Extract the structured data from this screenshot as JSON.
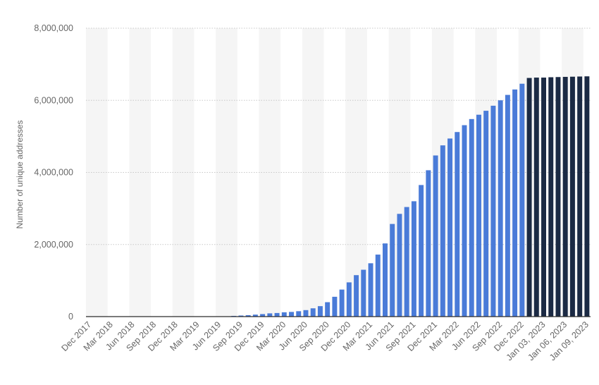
{
  "chart_data": {
    "type": "bar",
    "title": "",
    "xlabel": "",
    "ylabel": "Number of unique addresses",
    "ylim": [
      0,
      8000000
    ],
    "yticks": [
      0,
      2000000,
      4000000,
      6000000,
      8000000
    ],
    "ytick_labels": [
      "0",
      "2,000,000",
      "4,000,000",
      "6,000,000",
      "8,000,000"
    ],
    "grid": true,
    "legend": "none",
    "colors": {
      "monthly": "#4a7bd8",
      "daily": "#1b2a44",
      "text": "#666666"
    },
    "categories": [
      "Dec 2017",
      "Jan 2018",
      "Feb 2018",
      "Mar 2018",
      "Apr 2018",
      "May 2018",
      "Jun 2018",
      "Jul 2018",
      "Aug 2018",
      "Sep 2018",
      "Oct 2018",
      "Nov 2018",
      "Dec 2018",
      "Jan 2019",
      "Feb 2019",
      "Mar 2019",
      "Apr 2019",
      "May 2019",
      "Jun 2019",
      "Jul 2019",
      "Aug 2019",
      "Sep 2019",
      "Oct 2019",
      "Nov 2019",
      "Dec 2019",
      "Jan 2020",
      "Feb 2020",
      "Mar 2020",
      "Apr 2020",
      "May 2020",
      "Jun 2020",
      "Jul 2020",
      "Aug 2020",
      "Sep 2020",
      "Oct 2020",
      "Nov 2020",
      "Dec 2020",
      "Jan 2021",
      "Feb 2021",
      "Mar 2021",
      "Apr 2021",
      "May 2021",
      "Jun 2021",
      "Jul 2021",
      "Aug 2021",
      "Sep 2021",
      "Oct 2021",
      "Nov 2021",
      "Dec 2021",
      "Jan 2022",
      "Feb 2022",
      "Mar 2022",
      "Apr 2022",
      "May 2022",
      "Jun 2022",
      "Jul 2022",
      "Aug 2022",
      "Sep 2022",
      "Oct 2022",
      "Nov 2022",
      "Dec 2022",
      "Jan 01, 2023",
      "Jan 02, 2023",
      "Jan 03, 2023",
      "Jan 04, 2023",
      "Jan 05, 2023",
      "Jan 06, 2023",
      "Jan 07, 2023",
      "Jan 08, 2023",
      "Jan 09, 2023"
    ],
    "tick_labels": [
      "Dec 2017",
      "Mar 2018",
      "Jun 2018",
      "Sep 2018",
      "Dec 2018",
      "Mar 2019",
      "Jun 2019",
      "Sep 2019",
      "Dec 2019",
      "Mar 2020",
      "Jun 2020",
      "Sep 2020",
      "Dec 2020",
      "Mar 2021",
      "Jun 2021",
      "Sep 2021",
      "Dec 2021",
      "Mar 2022",
      "Jun 2022",
      "Sep 2022",
      "Dec 2022",
      "Jan 03, 2023",
      "Jan 06, 2023",
      "Jan 09, 2023"
    ],
    "series": [
      {
        "values": [
          0,
          0,
          0,
          0,
          0,
          0,
          0,
          0,
          0,
          0,
          0,
          0,
          0,
          0,
          0,
          0,
          0,
          0,
          0,
          0,
          20000,
          30000,
          40000,
          55000,
          70000,
          90000,
          100000,
          120000,
          130000,
          150000,
          180000,
          230000,
          290000,
          400000,
          550000,
          750000,
          950000,
          1150000,
          1300000,
          1480000,
          1720000,
          2030000,
          2570000,
          2850000,
          3040000,
          3200000,
          3650000,
          4060000,
          4470000,
          4750000,
          4940000,
          5120000,
          5310000,
          5480000,
          5600000,
          5710000,
          5850000,
          6000000,
          6150000,
          6300000,
          6460000,
          6620000,
          6630000,
          6630000,
          6640000,
          6645000,
          6650000,
          6655000,
          6660000,
          6665000
        ]
      }
    ]
  }
}
